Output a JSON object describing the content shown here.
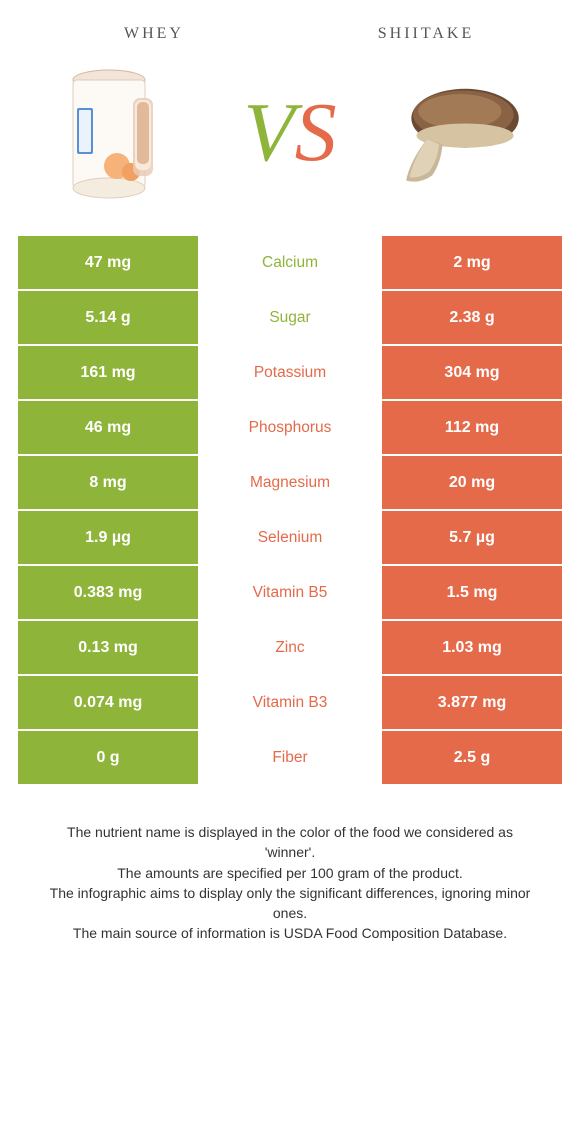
{
  "colors": {
    "left": "#8fb43a",
    "right": "#e46a4a",
    "bg": "#ffffff",
    "text": "#333333"
  },
  "header": {
    "left_title": "whey",
    "right_title": "shiitake"
  },
  "vs": {
    "v": "V",
    "s": "S"
  },
  "rows": [
    {
      "left": "47 mg",
      "label": "Calcium",
      "right": "2 mg",
      "winner": "left"
    },
    {
      "left": "5.14 g",
      "label": "Sugar",
      "right": "2.38 g",
      "winner": "left"
    },
    {
      "left": "161 mg",
      "label": "Potassium",
      "right": "304 mg",
      "winner": "right"
    },
    {
      "left": "46 mg",
      "label": "Phosphorus",
      "right": "112 mg",
      "winner": "right"
    },
    {
      "left": "8 mg",
      "label": "Magnesium",
      "right": "20 mg",
      "winner": "right"
    },
    {
      "left": "1.9 µg",
      "label": "Selenium",
      "right": "5.7 µg",
      "winner": "right"
    },
    {
      "left": "0.383 mg",
      "label": "Vitamin B5",
      "right": "1.5 mg",
      "winner": "right"
    },
    {
      "left": "0.13 mg",
      "label": "Zinc",
      "right": "1.03 mg",
      "winner": "right"
    },
    {
      "left": "0.074 mg",
      "label": "Vitamin B3",
      "right": "3.877 mg",
      "winner": "right"
    },
    {
      "left": "0 g",
      "label": "Fiber",
      "right": "2.5 g",
      "winner": "right"
    }
  ],
  "footer": {
    "l1": "The nutrient name is displayed in the color of the food we considered as 'winner'.",
    "l2": "The amounts are specified per 100 gram of the product.",
    "l3": "The infographic aims to display only the significant differences, ignoring minor ones.",
    "l4": "The main source of information is USDA Food Composition Database."
  }
}
